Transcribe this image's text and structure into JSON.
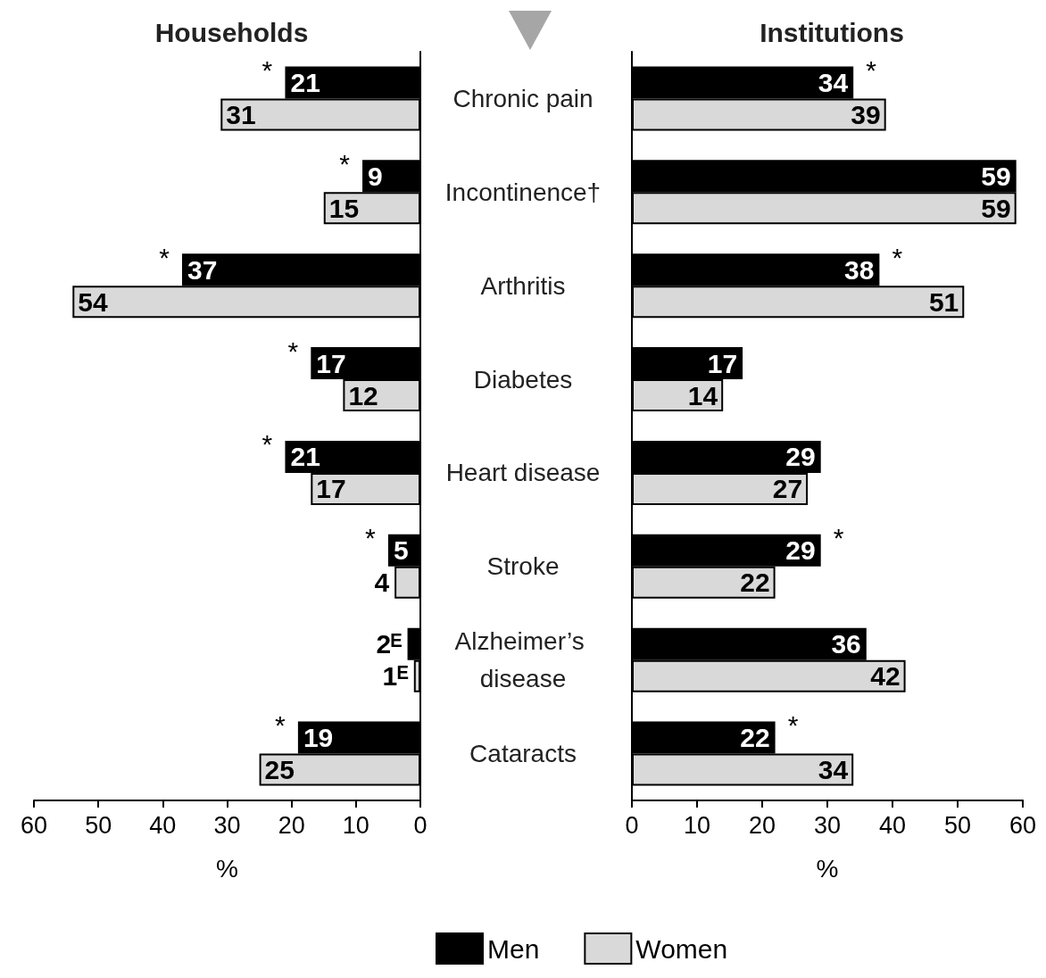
{
  "chart_data": [
    {
      "type": "bar",
      "orientation": "horizontal",
      "title": "Households",
      "xlabel": "%",
      "categories": [
        "Chronic pain",
        "Incontinence†",
        "Arthritis",
        "Diabetes",
        "Heart disease",
        "Stroke",
        "Alzheimer’s disease",
        "Cataracts"
      ],
      "series": [
        {
          "color": "#000000",
          "values": [
            21,
            9,
            37,
            17,
            21,
            5,
            2,
            19
          ],
          "value_labels": [
            "21",
            "9",
            "37",
            "17",
            "21",
            "5",
            "2ᴱ",
            "19"
          ]
        },
        {
          "color": "#d9d9d9",
          "values": [
            31,
            15,
            54,
            12,
            17,
            4,
            1,
            25
          ],
          "value_labels": [
            "31",
            "15",
            "54",
            "12",
            "17",
            "4",
            "1ᴱ",
            "25"
          ]
        }
      ],
      "xlim": [
        60,
        0
      ],
      "xticks": [
        60,
        50,
        40,
        30,
        20,
        10,
        0
      ],
      "tick_labels": "x",
      "grid": false,
      "legend": false,
      "annotations": [
        {
          "text": "*",
          "x": 21,
          "y": "Chronic pain"
        },
        {
          "text": "*",
          "x": 9,
          "y": "Incontinence†"
        },
        {
          "text": "*",
          "x": 37,
          "y": "Arthritis"
        },
        {
          "text": "*",
          "x": 17,
          "y": "Diabetes"
        },
        {
          "text": "*",
          "x": 21,
          "y": "Heart disease"
        },
        {
          "text": "*",
          "x": 5,
          "y": "Stroke"
        },
        {
          "text": "*",
          "x": 19,
          "y": "Cataracts"
        }
      ]
    },
    {
      "type": "bar",
      "orientation": "horizontal",
      "title": "Institutions",
      "xlabel": "%",
      "categories": [
        "Chronic pain",
        "Incontinence†",
        "Arthritis",
        "Diabetes",
        "Heart disease",
        "Stroke",
        "Alzheimer’s disease",
        "Cataracts"
      ],
      "series": [
        {
          "name": "Men",
          "color": "#000000",
          "values": [
            34,
            59,
            38,
            17,
            29,
            29,
            36,
            22
          ],
          "value_labels": [
            "34",
            "59",
            "38",
            "17",
            "29",
            "29",
            "36",
            "22"
          ]
        },
        {
          "name": "Women",
          "color": "#d9d9d9",
          "values": [
            39,
            59,
            51,
            14,
            27,
            22,
            42,
            34
          ],
          "value_labels": [
            "39",
            "59",
            "51",
            "14",
            "27",
            "22",
            "42",
            "34"
          ]
        }
      ],
      "xlim": [
        0,
        60
      ],
      "xticks": [
        0,
        10,
        20,
        30,
        40,
        50,
        60
      ],
      "grid": false,
      "legend": "bottom",
      "annotations": [
        {
          "text": "*",
          "x": 34,
          "y": "Chronic pain"
        },
        {
          "text": "*",
          "x": 38,
          "y": "Arthritis"
        },
        {
          "text": "*",
          "x": 29,
          "y": "Stroke"
        },
        {
          "text": "*",
          "x": 22,
          "y": "Cataracts"
        }
      ]
    }
  ]
}
